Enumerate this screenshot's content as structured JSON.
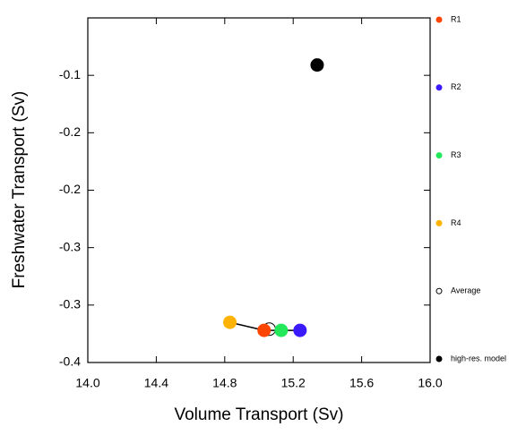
{
  "chart_data": {
    "type": "scatter",
    "xlabel": "Volume Transport (Sv)",
    "ylabel": "Freshwater Transport (Sv)",
    "xlim": [
      14.0,
      16.0
    ],
    "ylim": [
      -0.35,
      -0.05
    ],
    "xticks": [
      {
        "value": 14.0,
        "label": "14.0"
      },
      14.4,
      14.8,
      15.2,
      15.6,
      {
        "value": 16.0,
        "label": "16.0"
      }
    ],
    "yticks": [
      -0.1,
      {
        "value": -0.15,
        "label": "-0.2"
      },
      -0.2,
      {
        "value": -0.25,
        "label": "-0.3"
      },
      -0.3,
      {
        "value": -0.35,
        "label": "-0.4"
      }
    ],
    "series": [
      {
        "name": "R1",
        "color": "#ff4500",
        "filled": true,
        "x": [
          15.03
        ],
        "values": [
          -0.322
        ]
      },
      {
        "name": "R2",
        "color": "#3a1aff",
        "filled": true,
        "x": [
          15.24
        ],
        "values": [
          -0.322
        ]
      },
      {
        "name": "R3",
        "color": "#22e85a",
        "filled": true,
        "x": [
          15.13
        ],
        "values": [
          -0.322
        ]
      },
      {
        "name": "R4",
        "color": "#ffb300",
        "filled": true,
        "x": [
          14.83
        ],
        "values": [
          -0.315
        ]
      },
      {
        "name": "Average",
        "color": "#000000",
        "filled": false,
        "x": [
          15.06
        ],
        "values": [
          -0.321
        ]
      },
      {
        "name": "high-res. model",
        "color": "#000000",
        "filled": true,
        "x": [
          15.34
        ],
        "values": [
          -0.091
        ]
      }
    ]
  }
}
